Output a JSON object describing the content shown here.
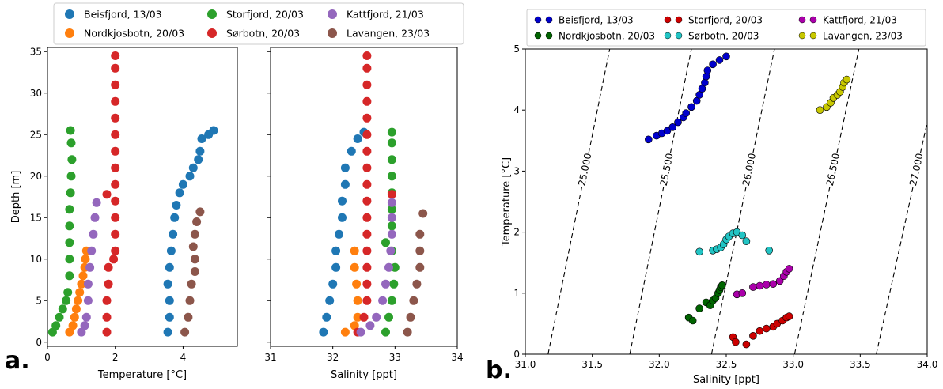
{
  "panel_labels": [
    "a.",
    "b."
  ],
  "chart_data": [
    {
      "type": "scatter",
      "panel": "a-left",
      "xlabel": "Temperature [°C]",
      "ylabel": "Depth [m]",
      "xlim": [
        0,
        5.6
      ],
      "ylim": [
        35.5,
        -0.5
      ],
      "xticks": [
        0,
        2,
        4
      ],
      "yticks": [
        0,
        5,
        10,
        15,
        20,
        25,
        30,
        35
      ],
      "series": [
        {
          "name": "Beisfjord, 13/03",
          "color": "#1f77b4",
          "points": [
            [
              3.55,
              1.2
            ],
            [
              3.6,
              3
            ],
            [
              3.6,
              5
            ],
            [
              3.55,
              7
            ],
            [
              3.6,
              9
            ],
            [
              3.65,
              11
            ],
            [
              3.7,
              13
            ],
            [
              3.75,
              15
            ],
            [
              3.8,
              16.5
            ],
            [
              3.9,
              18
            ],
            [
              4.0,
              19
            ],
            [
              4.2,
              20
            ],
            [
              4.3,
              21
            ],
            [
              4.45,
              22
            ],
            [
              4.5,
              23
            ],
            [
              4.55,
              24.5
            ],
            [
              4.75,
              25
            ],
            [
              4.9,
              25.5
            ]
          ]
        },
        {
          "name": "Nordkjosbotn, 20/03",
          "color": "#ff7f0e",
          "points": [
            [
              0.65,
              1.2
            ],
            [
              0.75,
              2
            ],
            [
              0.8,
              3
            ],
            [
              0.85,
              4
            ],
            [
              0.9,
              5
            ],
            [
              0.95,
              6
            ],
            [
              1.0,
              7
            ],
            [
              1.05,
              8
            ],
            [
              1.1,
              9
            ],
            [
              1.12,
              10
            ],
            [
              1.15,
              11
            ]
          ]
        },
        {
          "name": "Storfjord, 20/03",
          "color": "#2ca02c",
          "points": [
            [
              0.15,
              1.2
            ],
            [
              0.25,
              2
            ],
            [
              0.35,
              3
            ],
            [
              0.45,
              4
            ],
            [
              0.55,
              5
            ],
            [
              0.6,
              6
            ],
            [
              0.65,
              8
            ],
            [
              0.65,
              10
            ],
            [
              0.65,
              12
            ],
            [
              0.65,
              14
            ],
            [
              0.65,
              16
            ],
            [
              0.68,
              18
            ],
            [
              0.7,
              20
            ],
            [
              0.72,
              22
            ],
            [
              0.7,
              24
            ],
            [
              0.68,
              25.5
            ]
          ]
        },
        {
          "name": "Sørbotn, 20/03",
          "color": "#d62728",
          "points": [
            [
              1.75,
              1.2
            ],
            [
              1.75,
              3
            ],
            [
              1.75,
              5
            ],
            [
              1.8,
              7
            ],
            [
              1.8,
              9
            ],
            [
              1.95,
              10
            ],
            [
              2.0,
              11
            ],
            [
              2.0,
              13
            ],
            [
              2.0,
              15
            ],
            [
              2.0,
              17
            ],
            [
              1.75,
              17.8
            ],
            [
              2.0,
              19
            ],
            [
              2.0,
              21
            ],
            [
              2.0,
              23
            ],
            [
              2.0,
              25
            ],
            [
              2.0,
              27
            ],
            [
              2.0,
              29
            ],
            [
              2.0,
              31
            ],
            [
              2.0,
              33
            ],
            [
              2.0,
              34.5
            ]
          ]
        },
        {
          "name": "Kattfjord, 21/03",
          "color": "#9467bd",
          "points": [
            [
              1.0,
              1.2
            ],
            [
              1.1,
              2
            ],
            [
              1.15,
              3
            ],
            [
              1.2,
              5
            ],
            [
              1.2,
              7
            ],
            [
              1.25,
              9
            ],
            [
              1.3,
              11
            ],
            [
              1.35,
              13
            ],
            [
              1.4,
              15
            ],
            [
              1.45,
              16.8
            ]
          ]
        },
        {
          "name": "Lavangen, 23/03",
          "color": "#8c564b",
          "points": [
            [
              4.05,
              1.2
            ],
            [
              4.15,
              3
            ],
            [
              4.2,
              5
            ],
            [
              4.25,
              7
            ],
            [
              4.35,
              8.5
            ],
            [
              4.35,
              10
            ],
            [
              4.3,
              11.5
            ],
            [
              4.35,
              13
            ],
            [
              4.4,
              14.5
            ],
            [
              4.5,
              15.7
            ]
          ]
        }
      ],
      "legend": {
        "placement": "top",
        "columns": 3
      }
    },
    {
      "type": "scatter",
      "panel": "a-right",
      "xlabel": "Salinity [ppt]",
      "ylabel": "",
      "xlim": [
        31,
        34
      ],
      "ylim": [
        35.5,
        -0.5
      ],
      "xticks": [
        31,
        32,
        33,
        34
      ],
      "series": [
        {
          "name": "Beisfjord, 13/03",
          "color": "#1f77b4",
          "points": [
            [
              31.85,
              1.2
            ],
            [
              31.9,
              3
            ],
            [
              31.95,
              5
            ],
            [
              32.0,
              7
            ],
            [
              32.05,
              9
            ],
            [
              32.05,
              11
            ],
            [
              32.1,
              13
            ],
            [
              32.15,
              15
            ],
            [
              32.15,
              17
            ],
            [
              32.2,
              19
            ],
            [
              32.2,
              21
            ],
            [
              32.3,
              23
            ],
            [
              32.4,
              24.5
            ],
            [
              32.5,
              25.3
            ]
          ]
        },
        {
          "name": "Nordkjosbotn, 20/03",
          "color": "#ff7f0e",
          "points": [
            [
              32.2,
              1.2
            ],
            [
              32.35,
              2
            ],
            [
              32.4,
              3
            ],
            [
              32.4,
              5
            ],
            [
              32.38,
              7
            ],
            [
              32.35,
              9
            ],
            [
              32.35,
              11
            ]
          ]
        },
        {
          "name": "Storfjord, 20/03",
          "color": "#2ca02c",
          "points": [
            [
              32.85,
              1.2
            ],
            [
              32.9,
              3
            ],
            [
              32.95,
              5
            ],
            [
              32.98,
              7
            ],
            [
              33.0,
              9
            ],
            [
              32.95,
              11
            ],
            [
              32.85,
              12
            ],
            [
              32.95,
              14
            ],
            [
              32.95,
              16
            ],
            [
              32.95,
              18
            ],
            [
              32.95,
              20
            ],
            [
              32.95,
              22
            ],
            [
              32.95,
              24
            ],
            [
              32.95,
              25.3
            ]
          ]
        },
        {
          "name": "Sørbotn, 20/03",
          "color": "#d62728",
          "points": [
            [
              32.4,
              1.2
            ],
            [
              32.5,
              3
            ],
            [
              32.55,
              5
            ],
            [
              32.55,
              7
            ],
            [
              32.55,
              9
            ],
            [
              32.55,
              11
            ],
            [
              32.55,
              13
            ],
            [
              32.55,
              15
            ],
            [
              32.55,
              17
            ],
            [
              32.95,
              17.8
            ],
            [
              32.55,
              19
            ],
            [
              32.55,
              21
            ],
            [
              32.55,
              23
            ],
            [
              32.55,
              25
            ],
            [
              32.55,
              27
            ],
            [
              32.55,
              29
            ],
            [
              32.55,
              31
            ],
            [
              32.55,
              33
            ],
            [
              32.55,
              34.5
            ]
          ]
        },
        {
          "name": "Kattfjord, 21/03",
          "color": "#9467bd",
          "points": [
            [
              32.45,
              1.2
            ],
            [
              32.6,
              2
            ],
            [
              32.7,
              3
            ],
            [
              32.8,
              5
            ],
            [
              32.85,
              7
            ],
            [
              32.9,
              9
            ],
            [
              32.93,
              11
            ],
            [
              32.95,
              13
            ],
            [
              32.95,
              15
            ],
            [
              32.95,
              16.8
            ]
          ]
        },
        {
          "name": "Lavangen, 23/03",
          "color": "#8c564b",
          "points": [
            [
              33.2,
              1.2
            ],
            [
              33.25,
              3
            ],
            [
              33.3,
              5
            ],
            [
              33.35,
              7
            ],
            [
              33.4,
              9
            ],
            [
              33.4,
              11
            ],
            [
              33.4,
              13
            ],
            [
              33.45,
              15.5
            ]
          ]
        }
      ]
    },
    {
      "type": "scatter",
      "panel": "b",
      "xlabel": "Salinity [ppt]",
      "ylabel": "Temperature [°C]",
      "xlim": [
        31.0,
        34.0
      ],
      "ylim": [
        0,
        5
      ],
      "xticks": [
        "31.0",
        "31.5",
        "32.0",
        "32.5",
        "33.0",
        "33.5",
        "34.0"
      ],
      "yticks": [
        0,
        1,
        2,
        3,
        4,
        5
      ],
      "isopycnals": [
        {
          "label": "25.000",
          "bottom_s": 31.17,
          "top_s": 31.63
        },
        {
          "label": "25.500",
          "bottom_s": 31.78,
          "top_s": 32.24
        },
        {
          "label": "26.000",
          "bottom_s": 32.39,
          "top_s": 32.86
        },
        {
          "label": "26.500",
          "bottom_s": 33.01,
          "top_s": 33.49
        },
        {
          "label": "27.000",
          "bottom_s": 33.62,
          "top_s": 34.12
        }
      ],
      "series": [
        {
          "name": "Beisfjord, 13/03",
          "color": "#0000cc",
          "points": [
            [
              31.92,
              3.52
            ],
            [
              31.98,
              3.58
            ],
            [
              32.02,
              3.62
            ],
            [
              32.06,
              3.66
            ],
            [
              32.1,
              3.72
            ],
            [
              32.14,
              3.8
            ],
            [
              32.18,
              3.88
            ],
            [
              32.2,
              3.95
            ],
            [
              32.24,
              4.05
            ],
            [
              32.28,
              4.15
            ],
            [
              32.3,
              4.25
            ],
            [
              32.32,
              4.35
            ],
            [
              32.34,
              4.45
            ],
            [
              32.35,
              4.55
            ],
            [
              32.36,
              4.65
            ],
            [
              32.4,
              4.75
            ],
            [
              32.45,
              4.82
            ],
            [
              32.5,
              4.88
            ]
          ]
        },
        {
          "name": "Nordkjosbotn, 20/03",
          "color": "#006400",
          "points": [
            [
              32.22,
              0.6
            ],
            [
              32.25,
              0.55
            ],
            [
              32.3,
              0.75
            ],
            [
              32.35,
              0.85
            ],
            [
              32.38,
              0.8
            ],
            [
              32.4,
              0.88
            ],
            [
              32.42,
              0.92
            ],
            [
              32.44,
              1.0
            ],
            [
              32.45,
              1.05
            ],
            [
              32.46,
              1.1
            ],
            [
              32.47,
              1.13
            ]
          ]
        },
        {
          "name": "Storfjord, 20/03",
          "color": "#cc0000",
          "points": [
            [
              32.55,
              0.28
            ],
            [
              32.57,
              0.2
            ],
            [
              32.65,
              0.16
            ],
            [
              32.7,
              0.3
            ],
            [
              32.75,
              0.38
            ],
            [
              32.8,
              0.42
            ],
            [
              32.85,
              0.45
            ],
            [
              32.88,
              0.5
            ],
            [
              32.92,
              0.55
            ],
            [
              32.95,
              0.6
            ],
            [
              32.97,
              0.62
            ]
          ]
        },
        {
          "name": "Sørbotn, 20/03",
          "color": "#22c4c4",
          "points": [
            [
              32.3,
              1.68
            ],
            [
              32.4,
              1.7
            ],
            [
              32.43,
              1.72
            ],
            [
              32.46,
              1.75
            ],
            [
              32.48,
              1.8
            ],
            [
              32.5,
              1.88
            ],
            [
              32.52,
              1.93
            ],
            [
              32.55,
              1.98
            ],
            [
              32.58,
              2.0
            ],
            [
              32.62,
              1.95
            ],
            [
              32.65,
              1.85
            ],
            [
              32.82,
              1.7
            ]
          ]
        },
        {
          "name": "Kattfjord, 21/03",
          "color": "#aa00aa",
          "points": [
            [
              32.58,
              0.98
            ],
            [
              32.62,
              1.0
            ],
            [
              32.7,
              1.1
            ],
            [
              32.75,
              1.12
            ],
            [
              32.8,
              1.14
            ],
            [
              32.85,
              1.15
            ],
            [
              32.9,
              1.2
            ],
            [
              32.93,
              1.28
            ],
            [
              32.95,
              1.35
            ],
            [
              32.97,
              1.4
            ]
          ]
        },
        {
          "name": "Lavangen, 23/03",
          "color": "#c8c800",
          "points": [
            [
              33.2,
              4.0
            ],
            [
              33.25,
              4.05
            ],
            [
              33.28,
              4.12
            ],
            [
              33.3,
              4.2
            ],
            [
              33.33,
              4.25
            ],
            [
              33.35,
              4.3
            ],
            [
              33.37,
              4.38
            ],
            [
              33.38,
              4.45
            ],
            [
              33.4,
              4.5
            ]
          ]
        }
      ],
      "legend": {
        "placement": "top",
        "columns": 3
      }
    }
  ]
}
